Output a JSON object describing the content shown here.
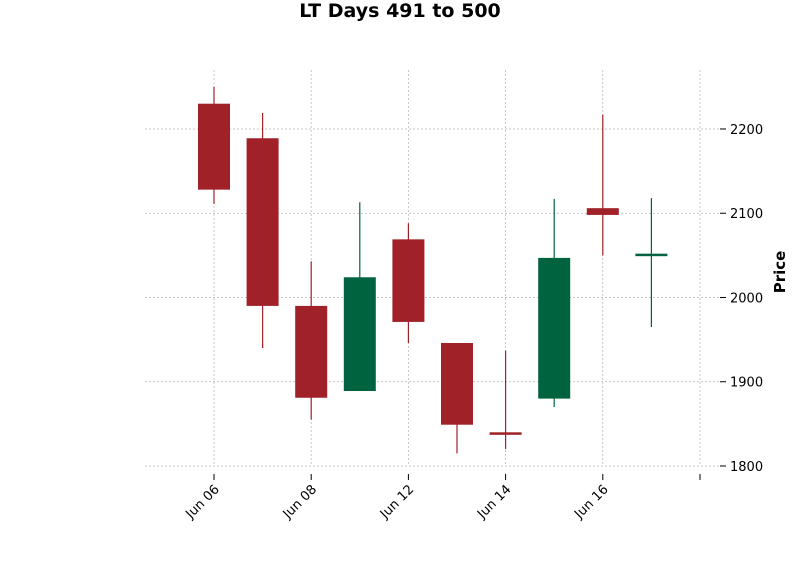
{
  "chart_data": {
    "type": "candlestick",
    "title": "LT Days 491 to 500",
    "ylabel": "Price",
    "xlabel": "",
    "ylim": [
      1800,
      2270
    ],
    "yticks": [
      1800,
      1900,
      2000,
      2100,
      2200
    ],
    "x_tick_labels": [
      "Jun 06",
      "Jun 08",
      "Jun 12",
      "Jun 14",
      "Jun 16",
      ""
    ],
    "x_tick_indices": [
      0,
      2,
      4,
      6,
      8,
      10
    ],
    "grid": true,
    "colors": {
      "up": "#006340",
      "down": "#a02128",
      "grid": "#b0b0b0"
    },
    "candles": [
      {
        "open": 2230,
        "high": 2250,
        "low": 2111,
        "close": 2128
      },
      {
        "open": 2189,
        "high": 2219,
        "low": 1940,
        "close": 1990
      },
      {
        "open": 1990,
        "high": 2043,
        "low": 1855,
        "close": 1881
      },
      {
        "open": 1889,
        "high": 2113,
        "low": 1889,
        "close": 2024
      },
      {
        "open": 2069,
        "high": 2088,
        "low": 1946,
        "close": 1971
      },
      {
        "open": 1946,
        "high": 1946,
        "low": 1815,
        "close": 1849
      },
      {
        "open": 1840,
        "high": 1937,
        "low": 1820,
        "close": 1837
      },
      {
        "open": 1880,
        "high": 2117,
        "low": 1870,
        "close": 2047
      },
      {
        "open": 2106,
        "high": 2217,
        "low": 2050,
        "close": 2098
      },
      {
        "open": 2050,
        "high": 2118,
        "low": 1965,
        "close": 2052
      }
    ]
  }
}
